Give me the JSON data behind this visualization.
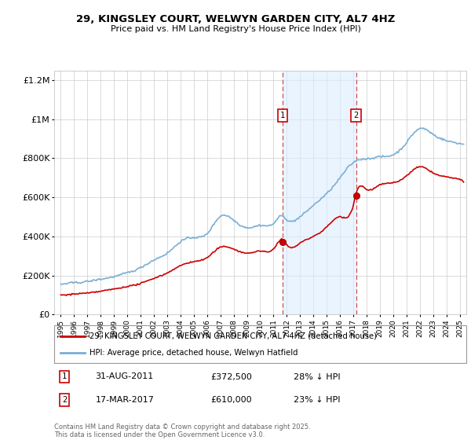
{
  "title_line1": "29, KINGSLEY COURT, WELWYN GARDEN CITY, AL7 4HZ",
  "title_line2": "Price paid vs. HM Land Registry's House Price Index (HPI)",
  "legend_label_red": "29, KINGSLEY COURT, WELWYN GARDEN CITY, AL7 4HZ (detached house)",
  "legend_label_blue": "HPI: Average price, detached house, Welwyn Hatfield",
  "annotation1_date": "31-AUG-2011",
  "annotation1_price": "£372,500",
  "annotation1_hpi": "28% ↓ HPI",
  "annotation2_date": "17-MAR-2017",
  "annotation2_price": "£610,000",
  "annotation2_hpi": "23% ↓ HPI",
  "footer": "Contains HM Land Registry data © Crown copyright and database right 2025.\nThis data is licensed under the Open Government Licence v3.0.",
  "color_red": "#cc0000",
  "color_blue": "#7aaed6",
  "color_shading": "#ddeeff",
  "ylim": [
    0,
    1250000
  ],
  "yticks": [
    0,
    200000,
    400000,
    600000,
    800000,
    1000000,
    1200000
  ],
  "sale1_year": 2011.67,
  "sale1_price": 372500,
  "sale2_year": 2017.21,
  "sale2_price": 610000
}
